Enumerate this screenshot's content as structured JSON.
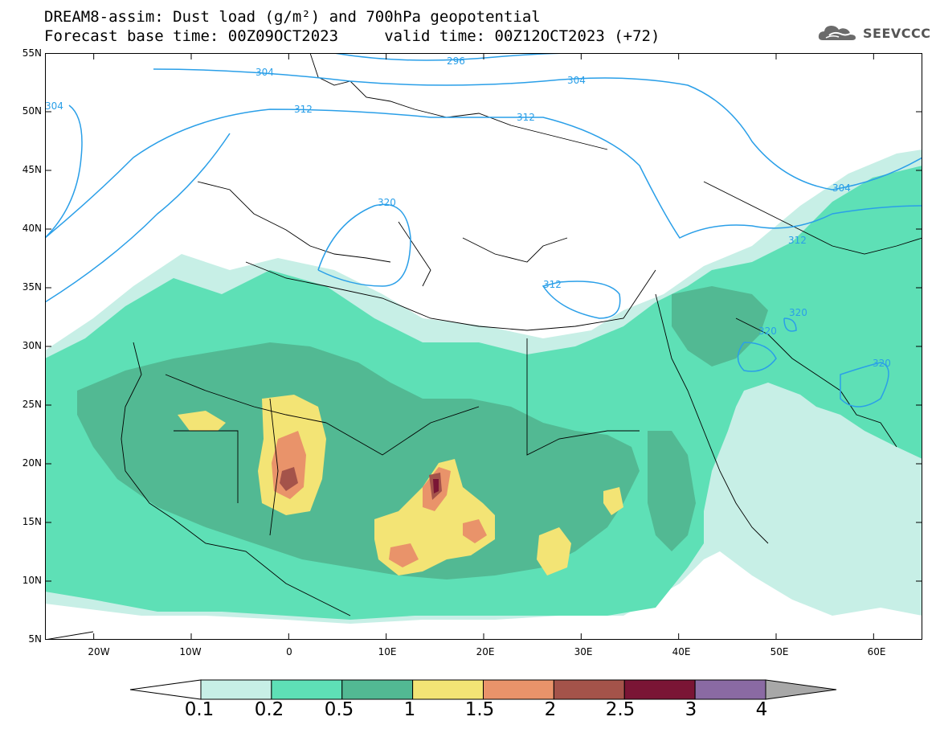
{
  "title": {
    "line1": "DREAM8-assim: Dust load (g/m²) and 700hPa geopotential",
    "line2": "Forecast base time: 00Z09OCT2023     valid time: 00Z12OCT2023 (+72)"
  },
  "logo": {
    "text": "SEEVCCC",
    "icon": "cloud-icon"
  },
  "map": {
    "lat_labels": [
      "55N",
      "50N",
      "45N",
      "40N",
      "35N",
      "30N",
      "25N",
      "20N",
      "15N",
      "10N",
      "5N"
    ],
    "lon_labels": [
      "20W",
      "10W",
      "0",
      "10E",
      "20E",
      "30E",
      "40E",
      "50E",
      "60E"
    ],
    "lat_range": [
      5,
      55
    ],
    "lon_range": [
      -25,
      65
    ],
    "contour_labels": [
      "296",
      "304",
      "304",
      "304",
      "312",
      "312",
      "312",
      "312",
      "320",
      "320",
      "320",
      "320",
      "304"
    ],
    "fill_colors": {
      "land_bg": "#ffffff",
      "dust_0_1": "#c7efe6",
      "dust_0_2": "#5ee0b6",
      "dust_0_5": "#52b993",
      "dust_1": "#f3e475",
      "dust_1_5": "#e9936a",
      "dust_2": "#a4534a",
      "dust_2_5": "#7a1535",
      "geopotential_line": "#2a9fe8"
    }
  },
  "colorbar": {
    "labels": [
      "0.1",
      "0.2",
      "0.5",
      "1",
      "1.5",
      "2",
      "2.5",
      "3",
      "4"
    ],
    "colors": [
      "#c7efe6",
      "#5ee0b6",
      "#52b993",
      "#f3e475",
      "#e9936a",
      "#a4534a",
      "#7a1535",
      "#8a6aa3"
    ]
  }
}
